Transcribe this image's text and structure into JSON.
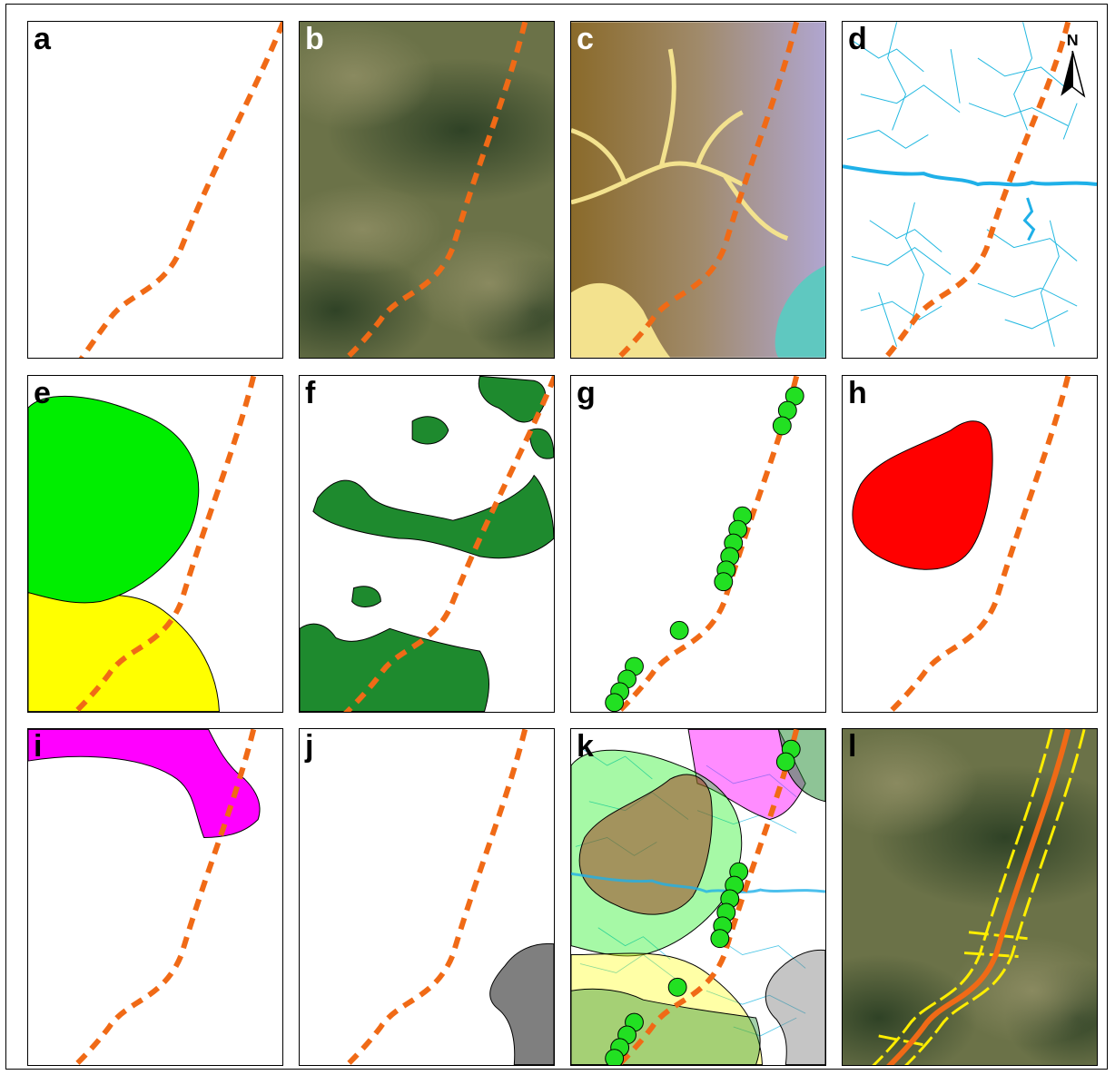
{
  "figure": {
    "panels": [
      {
        "label": "a",
        "content": "route-only"
      },
      {
        "label": "b",
        "content": "satellite-imagery"
      },
      {
        "label": "c",
        "content": "elevation"
      },
      {
        "label": "d",
        "content": "hydrography"
      },
      {
        "label": "e",
        "content": "green-yellow-zones"
      },
      {
        "label": "f",
        "content": "vegetation-patches"
      },
      {
        "label": "g",
        "content": "point-markers"
      },
      {
        "label": "h",
        "content": "red-zone"
      },
      {
        "label": "i",
        "content": "magenta-zone"
      },
      {
        "label": "j",
        "content": "gray-zone"
      },
      {
        "label": "k",
        "content": "overlay-composite"
      },
      {
        "label": "l",
        "content": "corridor-on-satellite"
      }
    ],
    "north_arrow": {
      "letter": "N"
    },
    "colors": {
      "route": "#f06a16",
      "zone_green": "#00ee00",
      "zone_yellow": "#ffff00",
      "vegetation": "#1e8a2e",
      "point": "#22e022",
      "zone_red": "#ff0000",
      "zone_magenta": "#ff00ff",
      "zone_gray": "#7f7f7f",
      "rivers": "#22b8e0",
      "corridor": "#ffee00"
    }
  }
}
